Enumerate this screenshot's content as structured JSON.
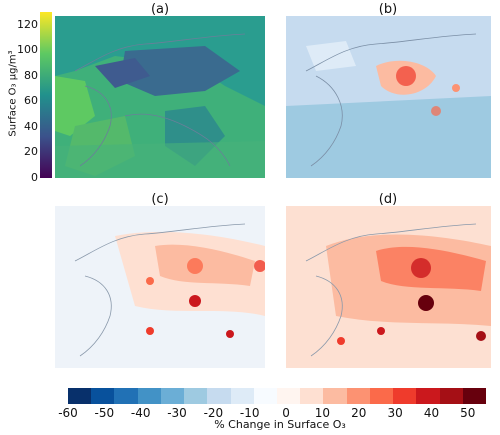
{
  "panels": [
    {
      "label": "(a)",
      "kind": "concentration"
    },
    {
      "label": "(b)",
      "kind": "change"
    },
    {
      "label": "(c)",
      "kind": "change"
    },
    {
      "label": "(d)",
      "kind": "change"
    }
  ],
  "colorbar_vertical": {
    "label": "Surface O₃ µg/m³",
    "ticks": [
      "0",
      "20",
      "40",
      "60",
      "80",
      "100",
      "120"
    ],
    "colors": [
      "#440154",
      "#3b528b",
      "#21918c",
      "#5ec962",
      "#fde725"
    ]
  },
  "colorbar_horizontal": {
    "label": "% Change in Surface O₃",
    "ticks": [
      "-60",
      "-50",
      "-40",
      "-30",
      "-20",
      "-10",
      "0",
      "10",
      "20",
      "30",
      "40",
      "50"
    ],
    "colors": [
      "#08306b",
      "#08519c",
      "#2171b5",
      "#4292c6",
      "#6baed6",
      "#9ecae1",
      "#c6dbef",
      "#deebf7",
      "#f7fbff",
      "#fff5f0",
      "#fee0d2",
      "#fcbba1",
      "#fc9272",
      "#fb6a4a",
      "#ef3b2c",
      "#cb181d",
      "#a50f15",
      "#67000d"
    ]
  }
}
